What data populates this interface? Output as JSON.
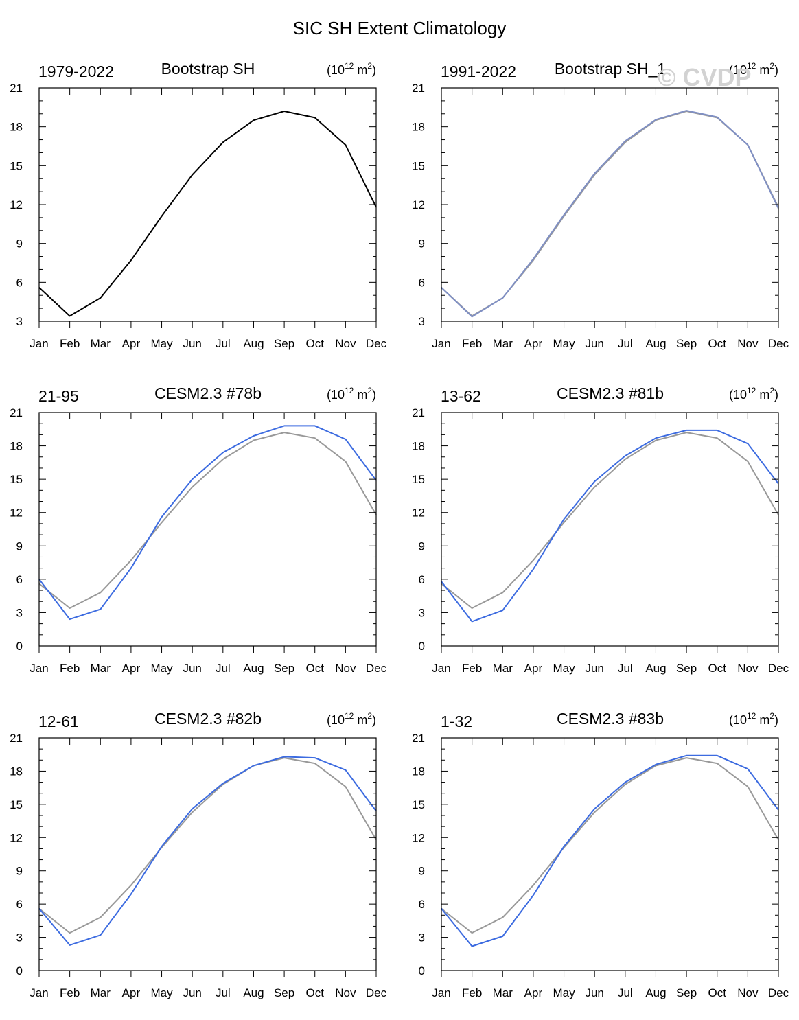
{
  "figure": {
    "title": "SIC SH Extent Climatology",
    "watermark": "© CVDP"
  },
  "colors": {
    "observed": "#000000",
    "observed_overlay": "#999999",
    "model": "#3c6be0",
    "reference": "#999999",
    "axis": "#000000"
  },
  "chart_data": [
    {
      "type": "line",
      "left_label": "1979-2022",
      "center_label": "Bootstrap SH",
      "units_base": "(10",
      "units_exp": "12",
      "units_mid": " m",
      "units_exp2": "2",
      "units_close": ")",
      "categories": [
        "Jan",
        "Feb",
        "Mar",
        "Apr",
        "May",
        "Jun",
        "Jul",
        "Aug",
        "Sep",
        "Oct",
        "Nov",
        "Dec"
      ],
      "ylim": [
        3,
        21
      ],
      "yticks": [
        3,
        6,
        9,
        12,
        15,
        18,
        21
      ],
      "series": [
        {
          "name": "Bootstrap SH 1979-2022",
          "role": "observed",
          "values": [
            5.6,
            3.4,
            4.8,
            7.7,
            11.1,
            14.3,
            16.8,
            18.5,
            19.2,
            18.7,
            16.6,
            11.8
          ]
        }
      ]
    },
    {
      "type": "line",
      "left_label": "1991-2022",
      "center_label": "Bootstrap SH_1",
      "units_base": "(10",
      "units_exp": "12",
      "units_mid": " m",
      "units_exp2": "2",
      "units_close": ")",
      "categories": [
        "Jan",
        "Feb",
        "Mar",
        "Apr",
        "May",
        "Jun",
        "Jul",
        "Aug",
        "Sep",
        "Oct",
        "Nov",
        "Dec"
      ],
      "ylim": [
        3,
        21
      ],
      "yticks": [
        3,
        6,
        9,
        12,
        15,
        18,
        21
      ],
      "series": [
        {
          "name": "Bootstrap SH 1979-2022",
          "role": "observed_overlay",
          "values": [
            5.6,
            3.4,
            4.8,
            7.7,
            11.1,
            14.3,
            16.8,
            18.5,
            19.2,
            18.7,
            16.6,
            11.8
          ]
        },
        {
          "name": "Bootstrap SH_1 1991-2022",
          "role": "model_muted",
          "values": [
            5.6,
            3.35,
            4.8,
            7.8,
            11.2,
            14.4,
            16.9,
            18.55,
            19.25,
            18.75,
            16.6,
            11.7
          ]
        }
      ]
    },
    {
      "type": "line",
      "left_label": "21-95",
      "center_label": "CESM2.3 #78b",
      "units_base": "(10",
      "units_exp": "12",
      "units_mid": " m",
      "units_exp2": "2",
      "units_close": ")",
      "categories": [
        "Jan",
        "Feb",
        "Mar",
        "Apr",
        "May",
        "Jun",
        "Jul",
        "Aug",
        "Sep",
        "Oct",
        "Nov",
        "Dec"
      ],
      "ylim": [
        0,
        21
      ],
      "yticks": [
        0,
        3,
        6,
        9,
        12,
        15,
        18,
        21
      ],
      "series": [
        {
          "name": "Bootstrap SH",
          "role": "reference",
          "values": [
            5.6,
            3.4,
            4.8,
            7.7,
            11.1,
            14.3,
            16.8,
            18.5,
            19.2,
            18.7,
            16.6,
            11.8
          ]
        },
        {
          "name": "CESM2.3 #78b",
          "role": "model",
          "values": [
            6.0,
            2.4,
            3.3,
            7.0,
            11.6,
            15.0,
            17.4,
            18.9,
            19.8,
            19.8,
            18.6,
            14.9
          ]
        }
      ]
    },
    {
      "type": "line",
      "left_label": "13-62",
      "center_label": "CESM2.3 #81b",
      "units_base": "(10",
      "units_exp": "12",
      "units_mid": " m",
      "units_exp2": "2",
      "units_close": ")",
      "categories": [
        "Jan",
        "Feb",
        "Mar",
        "Apr",
        "May",
        "Jun",
        "Jul",
        "Aug",
        "Sep",
        "Oct",
        "Nov",
        "Dec"
      ],
      "ylim": [
        0,
        21
      ],
      "yticks": [
        0,
        3,
        6,
        9,
        12,
        15,
        18,
        21
      ],
      "series": [
        {
          "name": "Bootstrap SH",
          "role": "reference",
          "values": [
            5.6,
            3.4,
            4.8,
            7.7,
            11.1,
            14.3,
            16.8,
            18.5,
            19.2,
            18.7,
            16.6,
            11.8
          ]
        },
        {
          "name": "CESM2.3 #81b",
          "role": "model",
          "values": [
            5.8,
            2.2,
            3.2,
            6.9,
            11.4,
            14.8,
            17.1,
            18.7,
            19.4,
            19.4,
            18.2,
            14.6
          ]
        }
      ]
    },
    {
      "type": "line",
      "left_label": "12-61",
      "center_label": "CESM2.3 #82b",
      "units_base": "(10",
      "units_exp": "12",
      "units_mid": " m",
      "units_exp2": "2",
      "units_close": ")",
      "categories": [
        "Jan",
        "Feb",
        "Mar",
        "Apr",
        "May",
        "Jun",
        "Jul",
        "Aug",
        "Sep",
        "Oct",
        "Nov",
        "Dec"
      ],
      "ylim": [
        0,
        21
      ],
      "yticks": [
        0,
        3,
        6,
        9,
        12,
        15,
        18,
        21
      ],
      "series": [
        {
          "name": "Bootstrap SH",
          "role": "reference",
          "values": [
            5.6,
            3.4,
            4.8,
            7.7,
            11.1,
            14.3,
            16.8,
            18.5,
            19.2,
            18.7,
            16.6,
            11.8
          ]
        },
        {
          "name": "CESM2.3 #82b",
          "role": "model",
          "values": [
            5.6,
            2.3,
            3.2,
            6.9,
            11.2,
            14.6,
            16.9,
            18.5,
            19.3,
            19.2,
            18.1,
            14.4
          ]
        }
      ]
    },
    {
      "type": "line",
      "left_label": "1-32",
      "center_label": "CESM2.3 #83b",
      "units_base": "(10",
      "units_exp": "12",
      "units_mid": " m",
      "units_exp2": "2",
      "units_close": ")",
      "categories": [
        "Jan",
        "Feb",
        "Mar",
        "Apr",
        "May",
        "Jun",
        "Jul",
        "Aug",
        "Sep",
        "Oct",
        "Nov",
        "Dec"
      ],
      "ylim": [
        0,
        21
      ],
      "yticks": [
        0,
        3,
        6,
        9,
        12,
        15,
        18,
        21
      ],
      "series": [
        {
          "name": "Bootstrap SH",
          "role": "reference",
          "values": [
            5.6,
            3.4,
            4.8,
            7.7,
            11.1,
            14.3,
            16.8,
            18.5,
            19.2,
            18.7,
            16.6,
            11.8
          ]
        },
        {
          "name": "CESM2.3 #83b",
          "role": "model",
          "values": [
            5.6,
            2.2,
            3.1,
            6.8,
            11.2,
            14.6,
            17.0,
            18.6,
            19.4,
            19.4,
            18.2,
            14.5
          ]
        }
      ]
    }
  ]
}
